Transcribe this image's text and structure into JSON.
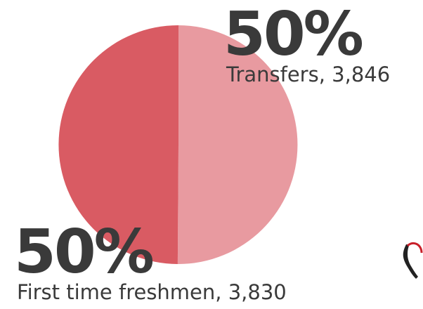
{
  "chart_data": {
    "type": "pie",
    "slices": [
      {
        "key": "transfers",
        "label": "Transfers, 3,846",
        "percent_label": "50%",
        "value": 3846,
        "color": "#e89aa0"
      },
      {
        "key": "freshmen",
        "label": "First time freshmen, 3,830",
        "percent_label": "50%",
        "value": 3830,
        "color": "#d95b63"
      }
    ],
    "legend": "none"
  },
  "logo": {
    "icon": "california-state-outline-logo",
    "colors": [
      "#222222",
      "#c8202a"
    ]
  }
}
